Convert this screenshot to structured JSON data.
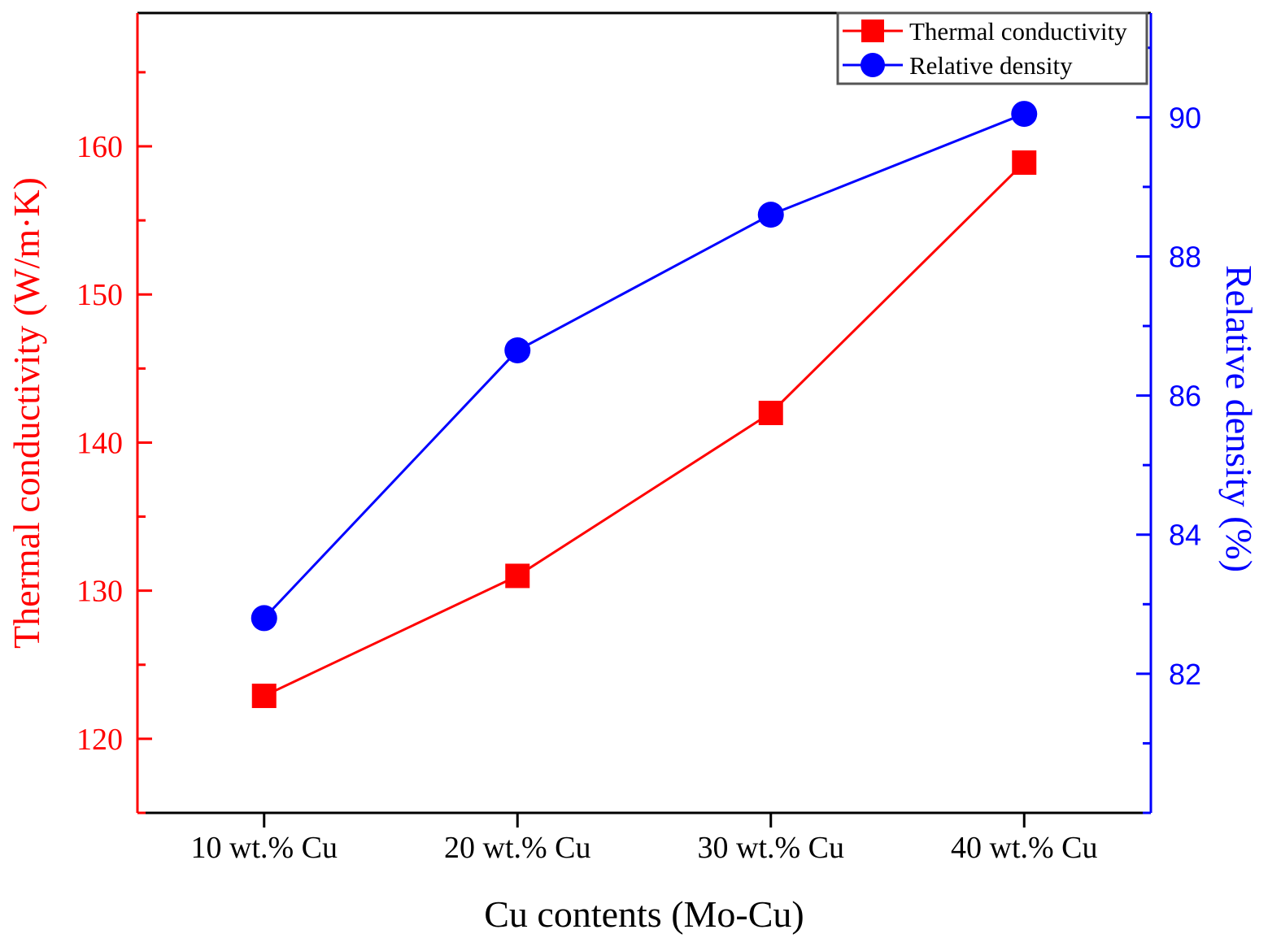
{
  "chart_data": {
    "type": "line",
    "xlabel": "Cu contents (Mo-Cu)",
    "categories": [
      "10 wt.% Cu",
      "20 wt.% Cu",
      "30 wt.% Cu",
      "40 wt.% Cu"
    ],
    "y_left": {
      "label": "Thermal conductivity (W/m·K)",
      "lim": [
        115,
        169
      ],
      "ticks": [
        120,
        130,
        140,
        150,
        160
      ],
      "minor_step": 5,
      "color": "#ff0000"
    },
    "y_right": {
      "label": "Relative density (%)",
      "lim": [
        80,
        91.5
      ],
      "ticks": [
        82,
        84,
        86,
        88,
        90
      ],
      "minor_step": 1,
      "color": "#0000ff"
    },
    "series": [
      {
        "name": "Thermal conductivity",
        "axis": "left",
        "marker": "square",
        "color": "#ff0000",
        "values": [
          122.9,
          131.0,
          142.0,
          158.9
        ]
      },
      {
        "name": "Relative density",
        "axis": "right",
        "marker": "circle",
        "color": "#0000ff",
        "values": [
          82.8,
          86.65,
          88.6,
          90.05
        ]
      }
    ],
    "legend": {
      "placement": "top-right"
    },
    "grid": false
  }
}
